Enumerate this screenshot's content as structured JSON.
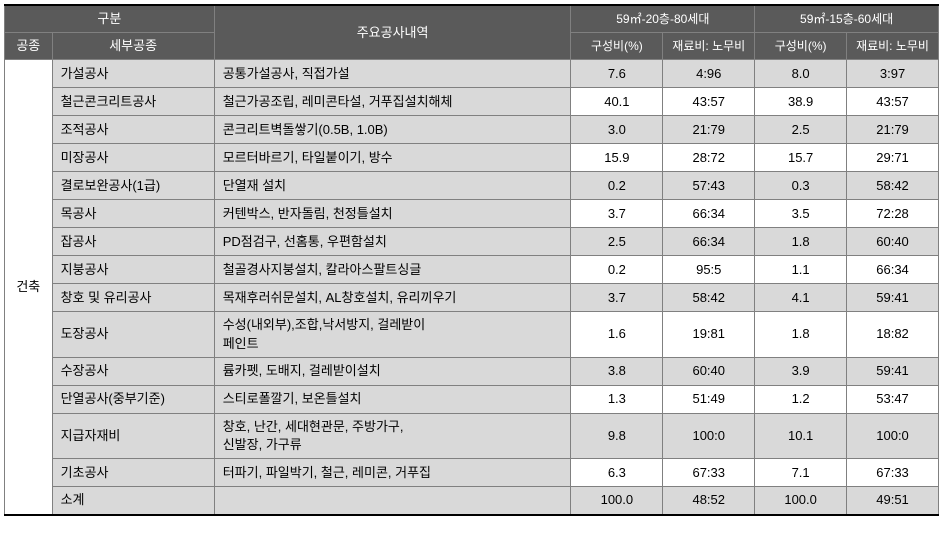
{
  "header": {
    "gubun": "구분",
    "gongjong": "공종",
    "sebu": "세부공종",
    "juyo": "주요공사내역",
    "col_a_top": "59㎡-20층-80세대",
    "col_b_top": "59㎡-15층-60세대",
    "guseong": "구성비(%)",
    "jaeryo": "재료비:\n노무비"
  },
  "vertical_label": "건축",
  "rows": [
    {
      "sebu": "가설공사",
      "juyo": "공통가설공사, 직접가설",
      "a1": "7.6",
      "a2": "4:96",
      "b1": "8.0",
      "b2": "3:97",
      "shadeNum": true
    },
    {
      "sebu": "철근콘크리트공사",
      "juyo": "철근가공조립, 레미콘타설, 거푸집설치해체",
      "a1": "40.1",
      "a2": "43:57",
      "b1": "38.9",
      "b2": "43:57",
      "shadeNum": false
    },
    {
      "sebu": "조적공사",
      "juyo": "콘크리트벽돌쌓기(0.5B, 1.0B)",
      "a1": "3.0",
      "a2": "21:79",
      "b1": "2.5",
      "b2": "21:79",
      "shadeNum": true
    },
    {
      "sebu": "미장공사",
      "juyo": "모르터바르기, 타일붙이기, 방수",
      "a1": "15.9",
      "a2": "28:72",
      "b1": "15.7",
      "b2": "29:71",
      "shadeNum": false
    },
    {
      "sebu": "결로보완공사(1급)",
      "juyo": "단열재 설치",
      "a1": "0.2",
      "a2": "57:43",
      "b1": "0.3",
      "b2": "58:42",
      "shadeNum": true
    },
    {
      "sebu": "목공사",
      "juyo": "커텐박스, 반자돌림, 천정틀설치",
      "a1": "3.7",
      "a2": "66:34",
      "b1": "3.5",
      "b2": "72:28",
      "shadeNum": false
    },
    {
      "sebu": "잡공사",
      "juyo": "PD점검구, 선홈통, 우편함설치",
      "a1": "2.5",
      "a2": "66:34",
      "b1": "1.8",
      "b2": "60:40",
      "shadeNum": true
    },
    {
      "sebu": "지붕공사",
      "juyo": "철골경사지붕설치, 칼라아스팔트싱글",
      "a1": "0.2",
      "a2": "95:5",
      "b1": "1.1",
      "b2": "66:34",
      "shadeNum": false
    },
    {
      "sebu": "창호 및 유리공사",
      "juyo": "목재후러쉬문설치, AL창호설치, 유리끼우기",
      "a1": "3.7",
      "a2": "58:42",
      "b1": "4.1",
      "b2": "59:41",
      "shadeNum": true
    },
    {
      "sebu": "도장공사",
      "juyo": "수성(내외부),조합,낙서방지, 걸레받이\n페인트",
      "a1": "1.6",
      "a2": "19:81",
      "b1": "1.8",
      "b2": "18:82",
      "shadeNum": false,
      "tall": true
    },
    {
      "sebu": "수장공사",
      "juyo": "륨카펫, 도배지, 걸레받이설치",
      "a1": "3.8",
      "a2": "60:40",
      "b1": "3.9",
      "b2": "59:41",
      "shadeNum": true
    },
    {
      "sebu": "단열공사(중부기준)",
      "juyo": "스티로폴깔기, 보온틀설치",
      "a1": "1.3",
      "a2": "51:49",
      "b1": "1.2",
      "b2": "53:47",
      "shadeNum": false
    },
    {
      "sebu": "지급자재비",
      "juyo": "창호, 난간, 세대현관문, 주방가구,\n신발장, 가구류",
      "a1": "9.8",
      "a2": "100:0",
      "b1": "10.1",
      "b2": "100:0",
      "shadeNum": true,
      "tall": true
    },
    {
      "sebu": "기초공사",
      "juyo": "터파기, 파일박기, 철근, 레미콘, 거푸집",
      "a1": "6.3",
      "a2": "67:33",
      "b1": "7.1",
      "b2": "67:33",
      "shadeNum": false
    }
  ],
  "subtotal": {
    "label": "소계",
    "a1": "100.0",
    "a2": "48:52",
    "b1": "100.0",
    "b2": "49:51"
  }
}
